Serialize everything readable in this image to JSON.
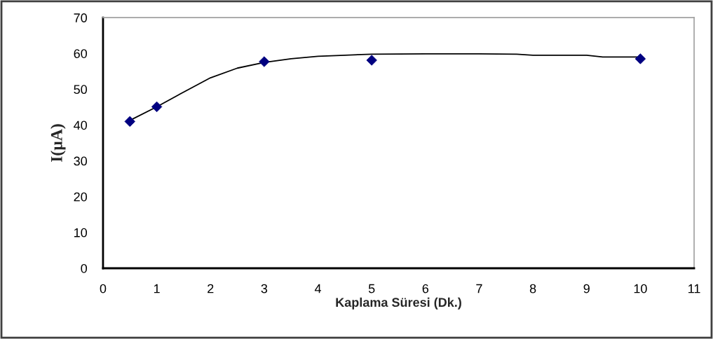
{
  "chart_data": {
    "type": "scatter",
    "xlabel": "Kaplama Süresi (Dk.)",
    "ylabel": "I(µA)",
    "x": [
      0.5,
      1,
      3,
      5,
      10
    ],
    "series": [
      {
        "color": "#000080",
        "marker": "diamond",
        "values": [
          41,
          45.1,
          57.7,
          58.1,
          58.5
        ]
      },
      {
        "type": "line",
        "color": "#000000",
        "marker": "none",
        "line_style": "solid",
        "x": [
          0.5,
          1,
          1.5,
          2,
          2.5,
          3,
          3.5,
          4,
          4.5,
          5,
          6,
          7,
          7.7,
          8,
          9,
          9.3,
          10
        ],
        "values": [
          41.3,
          45.1,
          49.2,
          53.2,
          55.9,
          57.5,
          58.5,
          59.2,
          59.5,
          59.8,
          59.9,
          59.9,
          59.8,
          59.5,
          59.5,
          59.0,
          59.0
        ]
      }
    ],
    "xlim": [
      0,
      11
    ],
    "xticks": [
      0,
      1,
      2,
      3,
      4,
      5,
      6,
      7,
      8,
      9,
      10,
      11
    ],
    "ylim": [
      0,
      70
    ],
    "yticks": [
      0,
      10,
      20,
      30,
      40,
      50,
      60,
      70
    ],
    "grid": false
  }
}
